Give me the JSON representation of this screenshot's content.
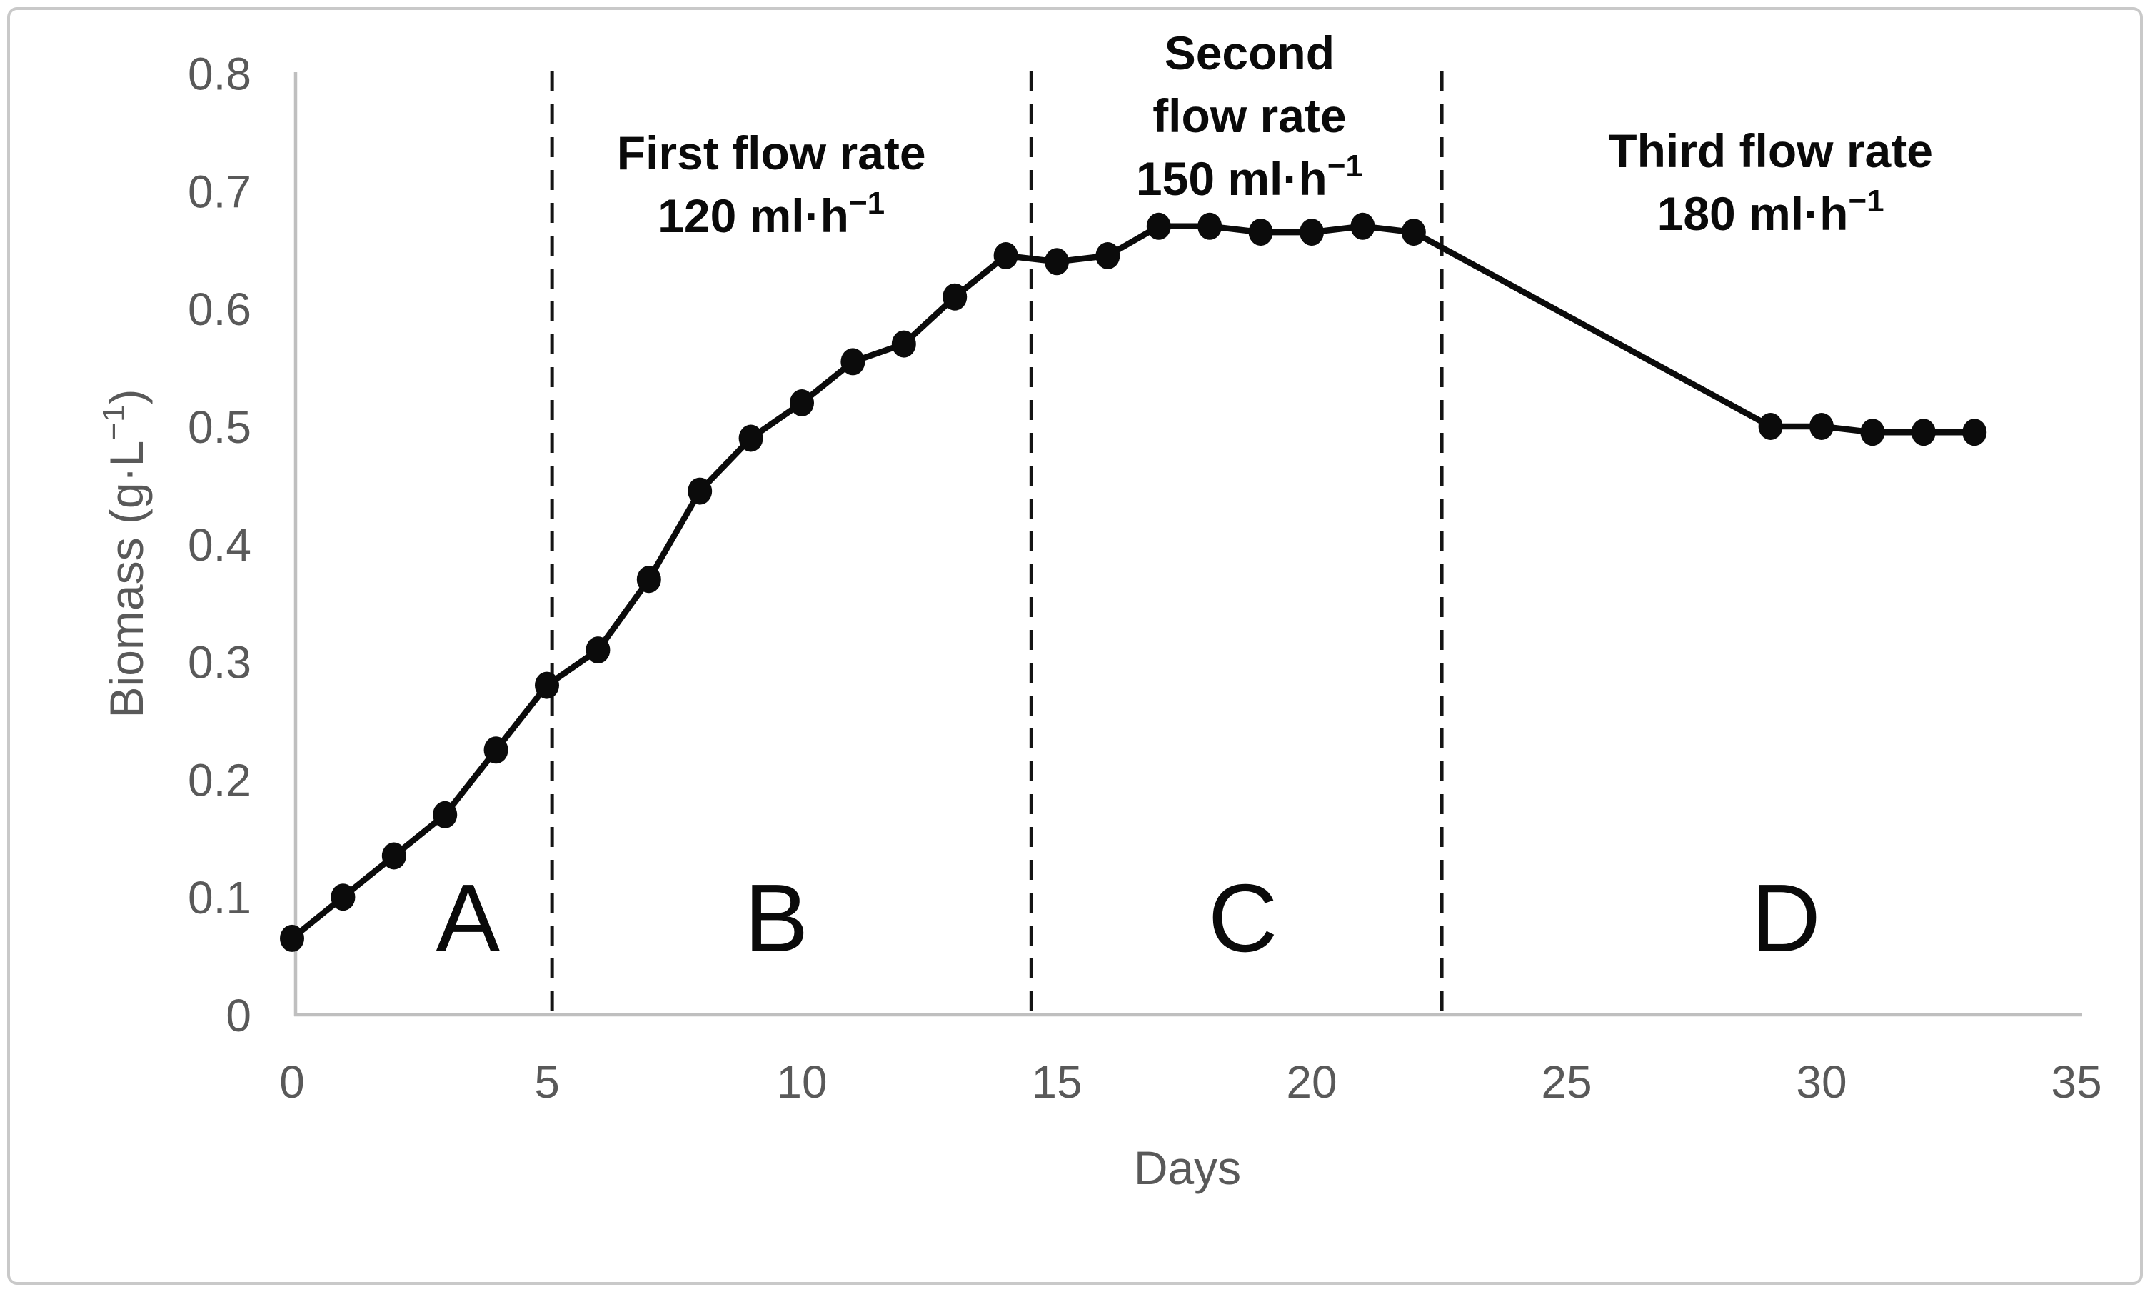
{
  "figure": {
    "background": "#ffffff",
    "border_color": "#c9c9c9"
  },
  "chart_data": {
    "type": "line",
    "title": "",
    "xlabel": "Days",
    "ylabel": "Biomass (g·L⁻¹)",
    "ylabel_segments": [
      {
        "t": "Biomass (g·L"
      },
      {
        "t": "−1",
        "sup": true
      },
      {
        "t": ")"
      }
    ],
    "xlim": [
      0,
      35
    ],
    "ylim": [
      0,
      0.8
    ],
    "x_ticks": [
      0,
      5,
      10,
      15,
      20,
      25,
      30,
      35
    ],
    "y_ticks": [
      {
        "label": "0",
        "v": 0
      },
      {
        "label": "0.1",
        "v": 0.1
      },
      {
        "label": "0.2",
        "v": 0.2
      },
      {
        "label": "0.3",
        "v": 0.3
      },
      {
        "label": "0.4",
        "v": 0.4
      },
      {
        "label": "0.5",
        "v": 0.5
      },
      {
        "label": "0.6",
        "v": 0.6
      },
      {
        "label": "0.7",
        "v": 0.7
      },
      {
        "label": "0.8",
        "v": 0.8
      }
    ],
    "grid": false,
    "legend": "none",
    "line_color": "#0b0b0b",
    "marker": "filled-circle",
    "axis_color": "#bfbfbf",
    "tick_label_color": "#595959",
    "annotation_color": "#0a0a0a",
    "series": [
      {
        "name": "Biomass",
        "points": [
          [
            0,
            0.065
          ],
          [
            1,
            0.1
          ],
          [
            2,
            0.135
          ],
          [
            3,
            0.17
          ],
          [
            4,
            0.225
          ],
          [
            5,
            0.28
          ],
          [
            6,
            0.31
          ],
          [
            7,
            0.37
          ],
          [
            8,
            0.445
          ],
          [
            9,
            0.49
          ],
          [
            10,
            0.52
          ],
          [
            11,
            0.555
          ],
          [
            12,
            0.57
          ],
          [
            13,
            0.61
          ],
          [
            14,
            0.645
          ],
          [
            15,
            0.64
          ],
          [
            16,
            0.645
          ],
          [
            17,
            0.67
          ],
          [
            18,
            0.67
          ],
          [
            19,
            0.665
          ],
          [
            20,
            0.665
          ],
          [
            21,
            0.67
          ],
          [
            22,
            0.665
          ],
          [
            29,
            0.5
          ],
          [
            30,
            0.5
          ],
          [
            31,
            0.495
          ],
          [
            32,
            0.495
          ],
          [
            33,
            0.495
          ]
        ]
      }
    ],
    "phase_dividers_x": [
      5.1,
      14.5,
      22.55
    ],
    "phase_labels": [
      {
        "label": "A",
        "x_day": 3.45
      },
      {
        "label": "B",
        "x_day": 9.5
      },
      {
        "label": "C",
        "x_day": 18.65
      },
      {
        "label": "D",
        "x_day": 29.3
      }
    ],
    "annotations": [
      {
        "name": "first-flow-rate",
        "x_day": 9.4,
        "y0": 237,
        "line_height": 88,
        "lines": [
          [
            {
              "t": "First flow rate"
            }
          ],
          [
            {
              "t": "120 ml·h"
            },
            {
              "t": "−1",
              "sup": true
            }
          ]
        ]
      },
      {
        "name": "second-flow-rate",
        "x_day": 18.78,
        "y0": 97,
        "line_height": 88,
        "lines": [
          [
            {
              "t": "Second"
            }
          ],
          [
            {
              "t": "flow rate"
            }
          ],
          [
            {
              "t": "150 ml·h"
            },
            {
              "t": "−1",
              "sup": true
            }
          ]
        ]
      },
      {
        "name": "third-flow-rate",
        "x_day": 29.0,
        "y0": 234,
        "line_height": 88,
        "lines": [
          [
            {
              "t": "Third flow rate"
            }
          ],
          [
            {
              "t": "180 ml·h"
            },
            {
              "t": "−1",
              "sup": true
            }
          ]
        ]
      }
    ]
  }
}
